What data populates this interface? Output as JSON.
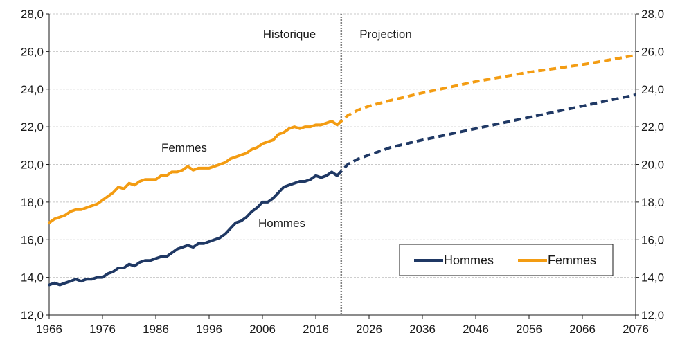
{
  "chart_data": {
    "type": "line",
    "x_ticks": [
      1966,
      1976,
      1986,
      1996,
      2006,
      2016,
      2026,
      2036,
      2046,
      2056,
      2066,
      2076
    ],
    "xlim": [
      1966,
      2076
    ],
    "ylim": [
      12,
      28
    ],
    "y_ticks": [
      "12,0",
      "14,0",
      "16,0",
      "18,0",
      "20,0",
      "22,0",
      "24,0",
      "26,0",
      "28,0"
    ],
    "grid": true,
    "secondary_y_axis": true,
    "divider_x": 2020,
    "annotations": {
      "left_region": "Historique",
      "right_region": "Projection",
      "femmes_label": "Femmes",
      "hommes_label": "Hommes"
    },
    "legend": {
      "position": "bottom-right",
      "entries": [
        {
          "name": "Hommes",
          "color": "#1f3864"
        },
        {
          "name": "Femmes",
          "color": "#f39c12"
        }
      ]
    },
    "series": [
      {
        "name": "Hommes",
        "color": "#1f3864",
        "historical": {
          "x": [
            1966,
            1967,
            1968,
            1969,
            1970,
            1971,
            1972,
            1973,
            1974,
            1975,
            1976,
            1977,
            1978,
            1979,
            1980,
            1981,
            1982,
            1983,
            1984,
            1985,
            1986,
            1987,
            1988,
            1989,
            1990,
            1991,
            1992,
            1993,
            1994,
            1995,
            1996,
            1997,
            1998,
            1999,
            2000,
            2001,
            2002,
            2003,
            2004,
            2005,
            2006,
            2007,
            2008,
            2009,
            2010,
            2011,
            2012,
            2013,
            2014,
            2015,
            2016,
            2017,
            2018,
            2019,
            2020
          ],
          "y": [
            13.6,
            13.7,
            13.6,
            13.7,
            13.8,
            13.9,
            13.8,
            13.9,
            13.9,
            14.0,
            14.0,
            14.2,
            14.3,
            14.5,
            14.5,
            14.7,
            14.6,
            14.8,
            14.9,
            14.9,
            15.0,
            15.1,
            15.1,
            15.3,
            15.5,
            15.6,
            15.7,
            15.6,
            15.8,
            15.8,
            15.9,
            16.0,
            16.1,
            16.3,
            16.6,
            16.9,
            17.0,
            17.2,
            17.5,
            17.7,
            18.0,
            18.0,
            18.2,
            18.5,
            18.8,
            18.9,
            19.0,
            19.1,
            19.1,
            19.2,
            19.4,
            19.3,
            19.4,
            19.6,
            19.4
          ]
        },
        "projection": {
          "x": [
            2020,
            2022,
            2024,
            2026,
            2030,
            2036,
            2046,
            2056,
            2066,
            2076
          ],
          "y": [
            19.4,
            20.0,
            20.3,
            20.5,
            20.9,
            21.3,
            21.9,
            22.5,
            23.1,
            23.7
          ]
        }
      },
      {
        "name": "Femmes",
        "color": "#f39c12",
        "historical": {
          "x": [
            1966,
            1967,
            1968,
            1969,
            1970,
            1971,
            1972,
            1973,
            1974,
            1975,
            1976,
            1977,
            1978,
            1979,
            1980,
            1981,
            1982,
            1983,
            1984,
            1985,
            1986,
            1987,
            1988,
            1989,
            1990,
            1991,
            1992,
            1993,
            1994,
            1995,
            1996,
            1997,
            1998,
            1999,
            2000,
            2001,
            2002,
            2003,
            2004,
            2005,
            2006,
            2007,
            2008,
            2009,
            2010,
            2011,
            2012,
            2013,
            2014,
            2015,
            2016,
            2017,
            2018,
            2019,
            2020
          ],
          "y": [
            16.9,
            17.1,
            17.2,
            17.3,
            17.5,
            17.6,
            17.6,
            17.7,
            17.8,
            17.9,
            18.1,
            18.3,
            18.5,
            18.8,
            18.7,
            19.0,
            18.9,
            19.1,
            19.2,
            19.2,
            19.2,
            19.4,
            19.4,
            19.6,
            19.6,
            19.7,
            19.9,
            19.7,
            19.8,
            19.8,
            19.8,
            19.9,
            20.0,
            20.1,
            20.3,
            20.4,
            20.5,
            20.6,
            20.8,
            20.9,
            21.1,
            21.2,
            21.3,
            21.6,
            21.7,
            21.9,
            22.0,
            21.9,
            22.0,
            22.0,
            22.1,
            22.1,
            22.2,
            22.3,
            22.1
          ]
        },
        "projection": {
          "x": [
            2020,
            2022,
            2024,
            2026,
            2030,
            2036,
            2046,
            2056,
            2066,
            2076
          ],
          "y": [
            22.1,
            22.6,
            22.9,
            23.1,
            23.4,
            23.8,
            24.4,
            24.9,
            25.3,
            25.8
          ]
        }
      }
    ]
  }
}
